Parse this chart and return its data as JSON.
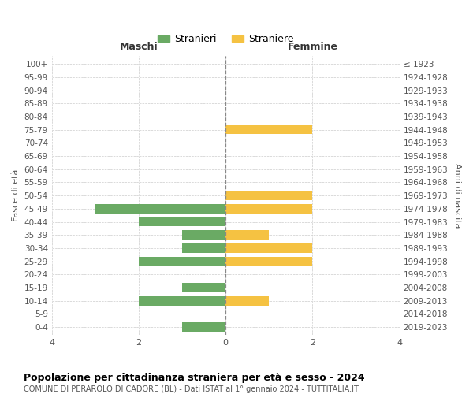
{
  "age_groups": [
    "100+",
    "95-99",
    "90-94",
    "85-89",
    "80-84",
    "75-79",
    "70-74",
    "65-69",
    "60-64",
    "55-59",
    "50-54",
    "45-49",
    "40-44",
    "35-39",
    "30-34",
    "25-29",
    "20-24",
    "15-19",
    "10-14",
    "5-9",
    "0-4"
  ],
  "birth_years": [
    "≤ 1923",
    "1924-1928",
    "1929-1933",
    "1934-1938",
    "1939-1943",
    "1944-1948",
    "1949-1953",
    "1954-1958",
    "1959-1963",
    "1964-1968",
    "1969-1973",
    "1974-1978",
    "1979-1983",
    "1984-1988",
    "1989-1993",
    "1994-1998",
    "1999-2003",
    "2004-2008",
    "2009-2013",
    "2014-2018",
    "2019-2023"
  ],
  "maschi": [
    0,
    0,
    0,
    0,
    0,
    0,
    0,
    0,
    0,
    0,
    0,
    3,
    2,
    1,
    1,
    2,
    0,
    1,
    2,
    0,
    1
  ],
  "femmine": [
    0,
    0,
    0,
    0,
    0,
    2,
    0,
    0,
    0,
    0,
    2,
    2,
    0,
    1,
    2,
    2,
    0,
    0,
    1,
    0,
    0
  ],
  "color_maschi": "#6aaa64",
  "color_femmine": "#f5c242",
  "title": "Popolazione per cittadinanza straniera per età e sesso - 2024",
  "subtitle": "COMUNE DI PERAROLO DI CADORE (BL) - Dati ISTAT al 1° gennaio 2024 - TUTTITALIA.IT",
  "xlabel_maschi": "Maschi",
  "xlabel_femmine": "Femmine",
  "ylabel_left": "Fasce di età",
  "ylabel_right": "Anni di nascita",
  "legend_maschi": "Stranieri",
  "legend_femmine": "Straniere",
  "xlim": 4,
  "background_color": "#ffffff",
  "grid_color": "#cccccc"
}
